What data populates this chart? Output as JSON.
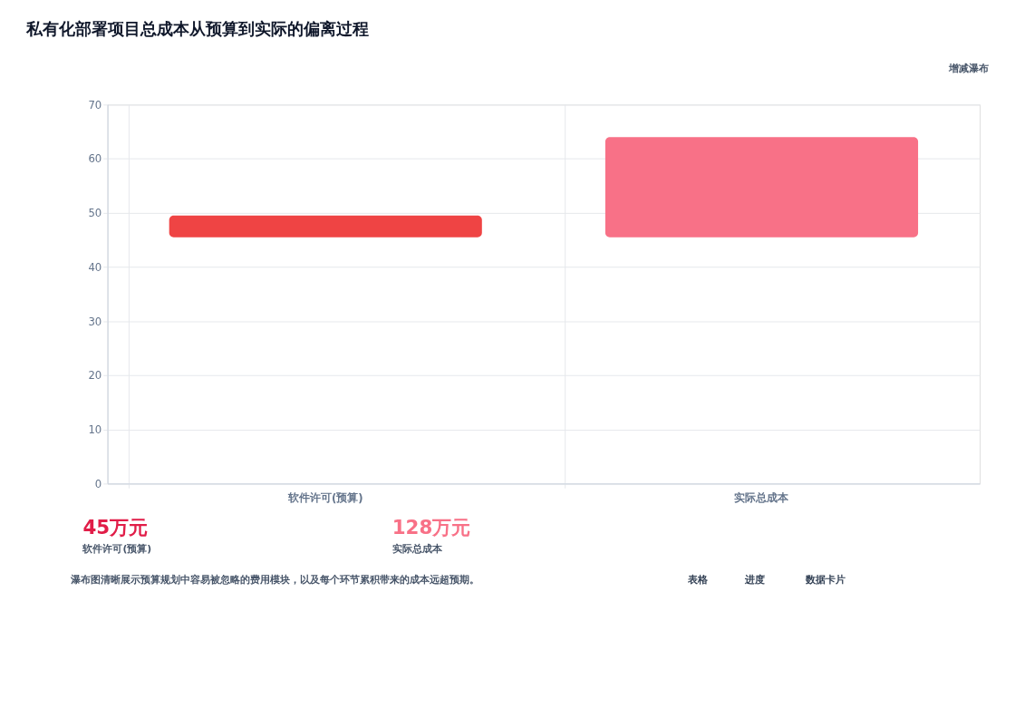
{
  "chart_data": {
    "type": "bar",
    "title": "私有化部署项目总成本从预算到实际的偏离过程",
    "categories": [
      "软件许可(预算)",
      "实际总成本"
    ],
    "values": [
      4,
      18.5
    ],
    "base": [
      45.5,
      45.5
    ],
    "colors": [
      "#ef4444",
      "#f87187"
    ],
    "ylim": [
      0,
      70
    ],
    "yticks": [
      0,
      10,
      20,
      30,
      40,
      50,
      60,
      70
    ],
    "grid": true,
    "annotations": [
      "增减瀑布",
      "45万元",
      "软件许可(预算)",
      "128万元",
      "实际总成本",
      "瀑布图清晰展示预算规划中容易被忽略的费用模块，以及每个环节累积带来的成本远超预期。",
      "表格",
      "进度",
      "数据卡片"
    ]
  }
}
